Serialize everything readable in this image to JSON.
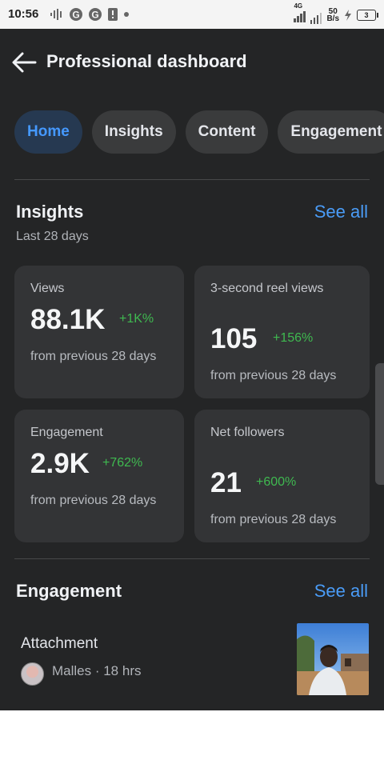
{
  "status_bar": {
    "time": "10:56",
    "network_label": "4G",
    "speed_value": "50",
    "speed_unit": "B/s",
    "battery": "3"
  },
  "header": {
    "title": "Professional dashboard",
    "back_icon": "arrow-left-icon"
  },
  "tabs": [
    {
      "label": "Home",
      "active": true
    },
    {
      "label": "Insights",
      "active": false
    },
    {
      "label": "Content",
      "active": false
    },
    {
      "label": "Engagement",
      "active": false
    }
  ],
  "insights": {
    "title": "Insights",
    "see_all": "See all",
    "subtitle": "Last 28 days",
    "cards": [
      {
        "label": "Views",
        "value": "88.1K",
        "change": "+1K%",
        "footer": "from previous 28 days"
      },
      {
        "label": "3-second reel views",
        "value": "105",
        "change": "+156%",
        "footer": "from previous 28 days"
      },
      {
        "label": "Engagement",
        "value": "2.9K",
        "change": "+762%",
        "footer": "from previous 28 days"
      },
      {
        "label": "Net followers",
        "value": "21",
        "change": "+600%",
        "footer": "from previous 28 days"
      }
    ]
  },
  "engagement": {
    "title": "Engagement",
    "see_all": "See all",
    "item": {
      "title": "Attachment",
      "meta": "Malles · 18 hrs"
    }
  },
  "colors": {
    "background": "#242526",
    "accent": "#4a9cf7",
    "positive": "#3fb950",
    "card": "#333436"
  }
}
